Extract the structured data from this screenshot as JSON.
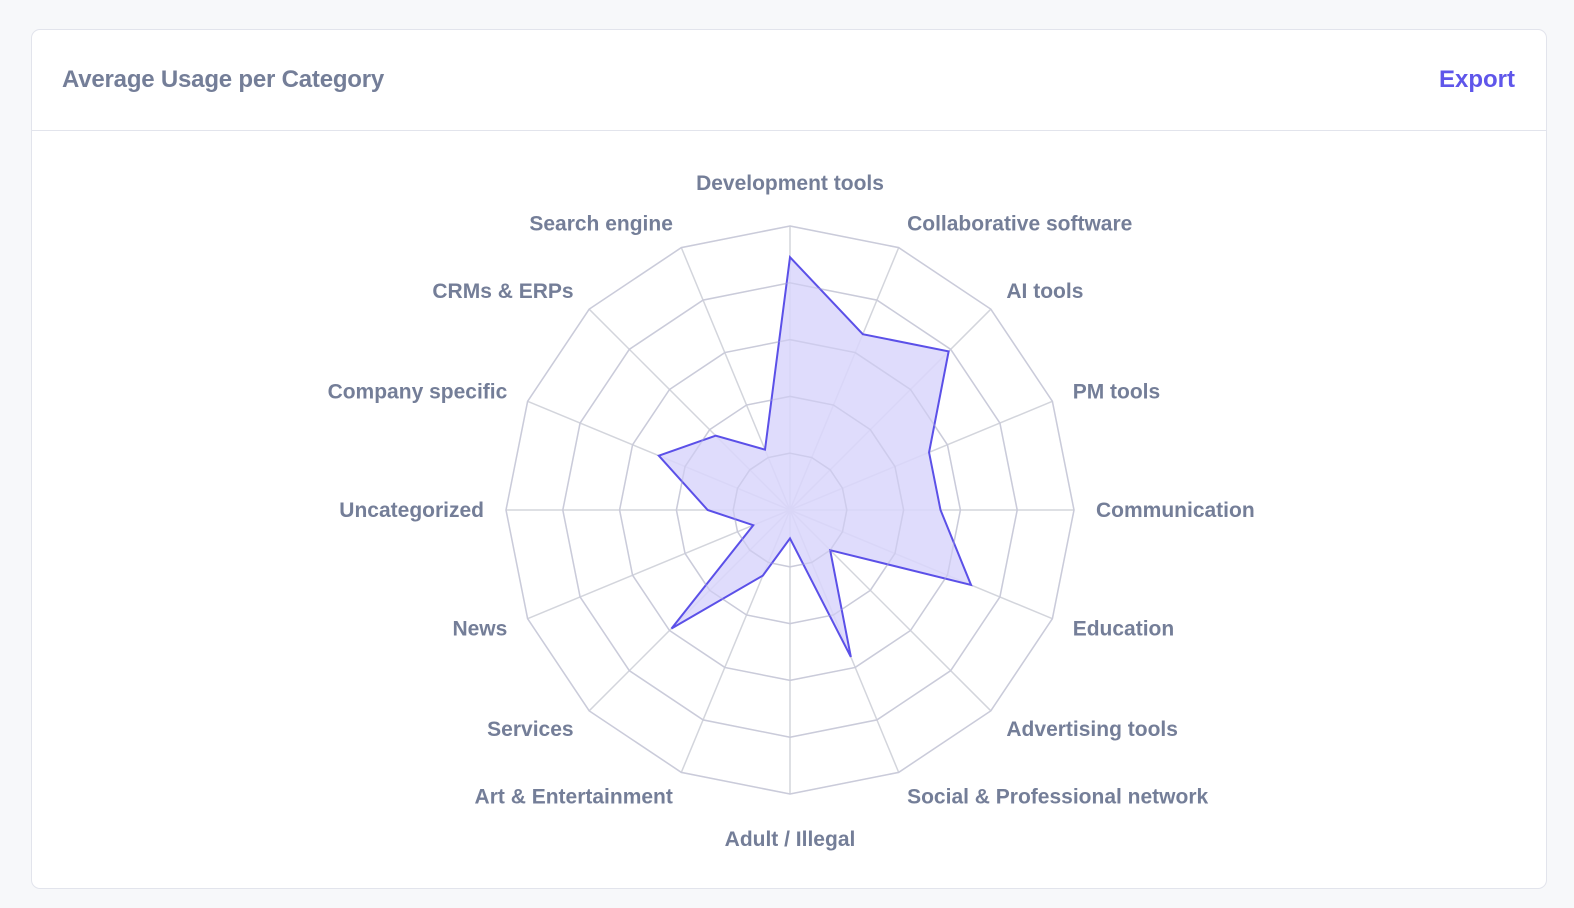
{
  "card": {
    "title": "Average Usage per Category",
    "export_label": "Export"
  },
  "colors": {
    "page_bg": "#f7f8fa",
    "card_border": "#e2e4ec",
    "title_text": "#747e98",
    "accent": "#5f56ea",
    "grid": "#d3d5dc",
    "series_stroke": "#5b50e8",
    "series_fill": "#d9d6fb"
  },
  "chart_data": {
    "type": "radar",
    "title": "Average Usage per Category",
    "categories": [
      "Development tools",
      "Collaborative software",
      "AI tools",
      "PM tools",
      "Communication",
      "Education",
      "Advertising tools",
      "Social & Professional network",
      "Adult / Illegal",
      "Art & Entertainment",
      "Services",
      "News",
      "Uncategorized",
      "Company specific",
      "CRMs & ERPs",
      "Search engine"
    ],
    "series": [
      {
        "name": "Average Usage",
        "values": [
          89,
          67,
          79,
          53,
          53,
          69,
          20,
          56,
          10,
          25,
          59,
          14,
          29,
          50,
          37,
          23
        ]
      }
    ],
    "rlim": [
      0,
      100
    ],
    "grid_rings": 5,
    "grid": true,
    "legend": "none",
    "xlabel": "",
    "ylabel": ""
  }
}
